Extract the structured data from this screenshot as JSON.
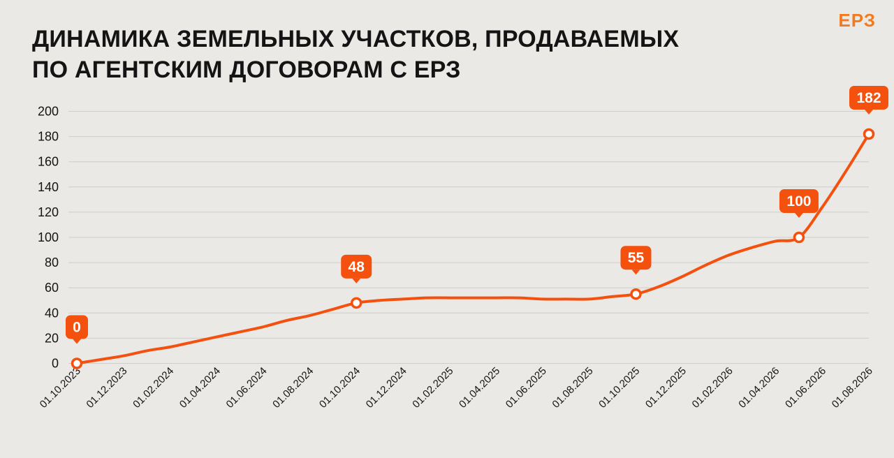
{
  "title_lines": [
    "ДИНАМИКА ЗЕМЕЛЬНЫХ УЧАСТКОВ, ПРОДАВАЕМЫХ",
    "ПО АГЕНТСКИМ ДОГОВОРАМ С ЕРЗ"
  ],
  "logo_text": "ЕРЗ",
  "colors": {
    "accent": "#F4500E",
    "background": "#EAE9E6",
    "grid": "#CFCECB",
    "text": "#141414"
  },
  "chart_data": {
    "type": "line",
    "title": "ДИНАМИКА ЗЕМЕЛЬНЫХ УЧАСТКОВ, ПРОДАВАЕМЫХ ПО АГЕНТСКИМ ДОГОВОРАМ С ЕРЗ",
    "xlabel": "",
    "ylabel": "",
    "ylim": [
      0,
      200
    ],
    "yticks": [
      0,
      20,
      40,
      60,
      80,
      100,
      120,
      140,
      160,
      180,
      200
    ],
    "grid": true,
    "x_tick_labels": [
      "01.10.2023",
      "01.12.2023",
      "01.02.2024",
      "01.04.2024",
      "01.06.2024",
      "01.08.2024",
      "01.10.2024",
      "01.12.2024",
      "01.02.2025",
      "01.04.2025",
      "01.06.2025",
      "01.08.2025",
      "01.10.2025",
      "01.12.2025",
      "01.02.2026",
      "01.04.2026",
      "01.06.2026",
      "01.08.2026"
    ],
    "series": [
      {
        "name": "",
        "x": [
          "2023-10-01",
          "2023-11-01",
          "2023-12-01",
          "2024-01-01",
          "2024-02-01",
          "2024-03-01",
          "2024-04-01",
          "2024-05-01",
          "2024-06-01",
          "2024-07-01",
          "2024-08-01",
          "2024-09-01",
          "2024-10-01",
          "2024-11-01",
          "2024-12-01",
          "2025-01-01",
          "2025-02-01",
          "2025-03-01",
          "2025-04-01",
          "2025-05-01",
          "2025-06-01",
          "2025-07-01",
          "2025-08-01",
          "2025-09-01",
          "2025-10-01",
          "2025-11-01",
          "2025-12-01",
          "2026-01-01",
          "2026-02-01",
          "2026-03-01",
          "2026-04-01",
          "2026-05-01",
          "2026-06-01",
          "2026-07-01",
          "2026-08-01"
        ],
        "values": [
          0,
          3,
          6,
          10,
          13,
          17,
          21,
          25,
          29,
          34,
          38,
          43,
          48,
          50,
          51,
          52,
          52,
          52,
          52,
          52,
          51,
          51,
          51,
          53,
          55,
          61,
          69,
          78,
          86,
          92,
          97,
          100,
          124,
          152,
          182
        ]
      }
    ],
    "annotations": [
      {
        "x": "2023-10-01",
        "value": 0,
        "label": "0"
      },
      {
        "x": "2024-10-01",
        "value": 48,
        "label": "48"
      },
      {
        "x": "2025-10-01",
        "value": 55,
        "label": "55"
      },
      {
        "x": "2026-05-01",
        "value": 100,
        "label": "100"
      },
      {
        "x": "2026-08-01",
        "value": 182,
        "label": "182"
      }
    ]
  }
}
